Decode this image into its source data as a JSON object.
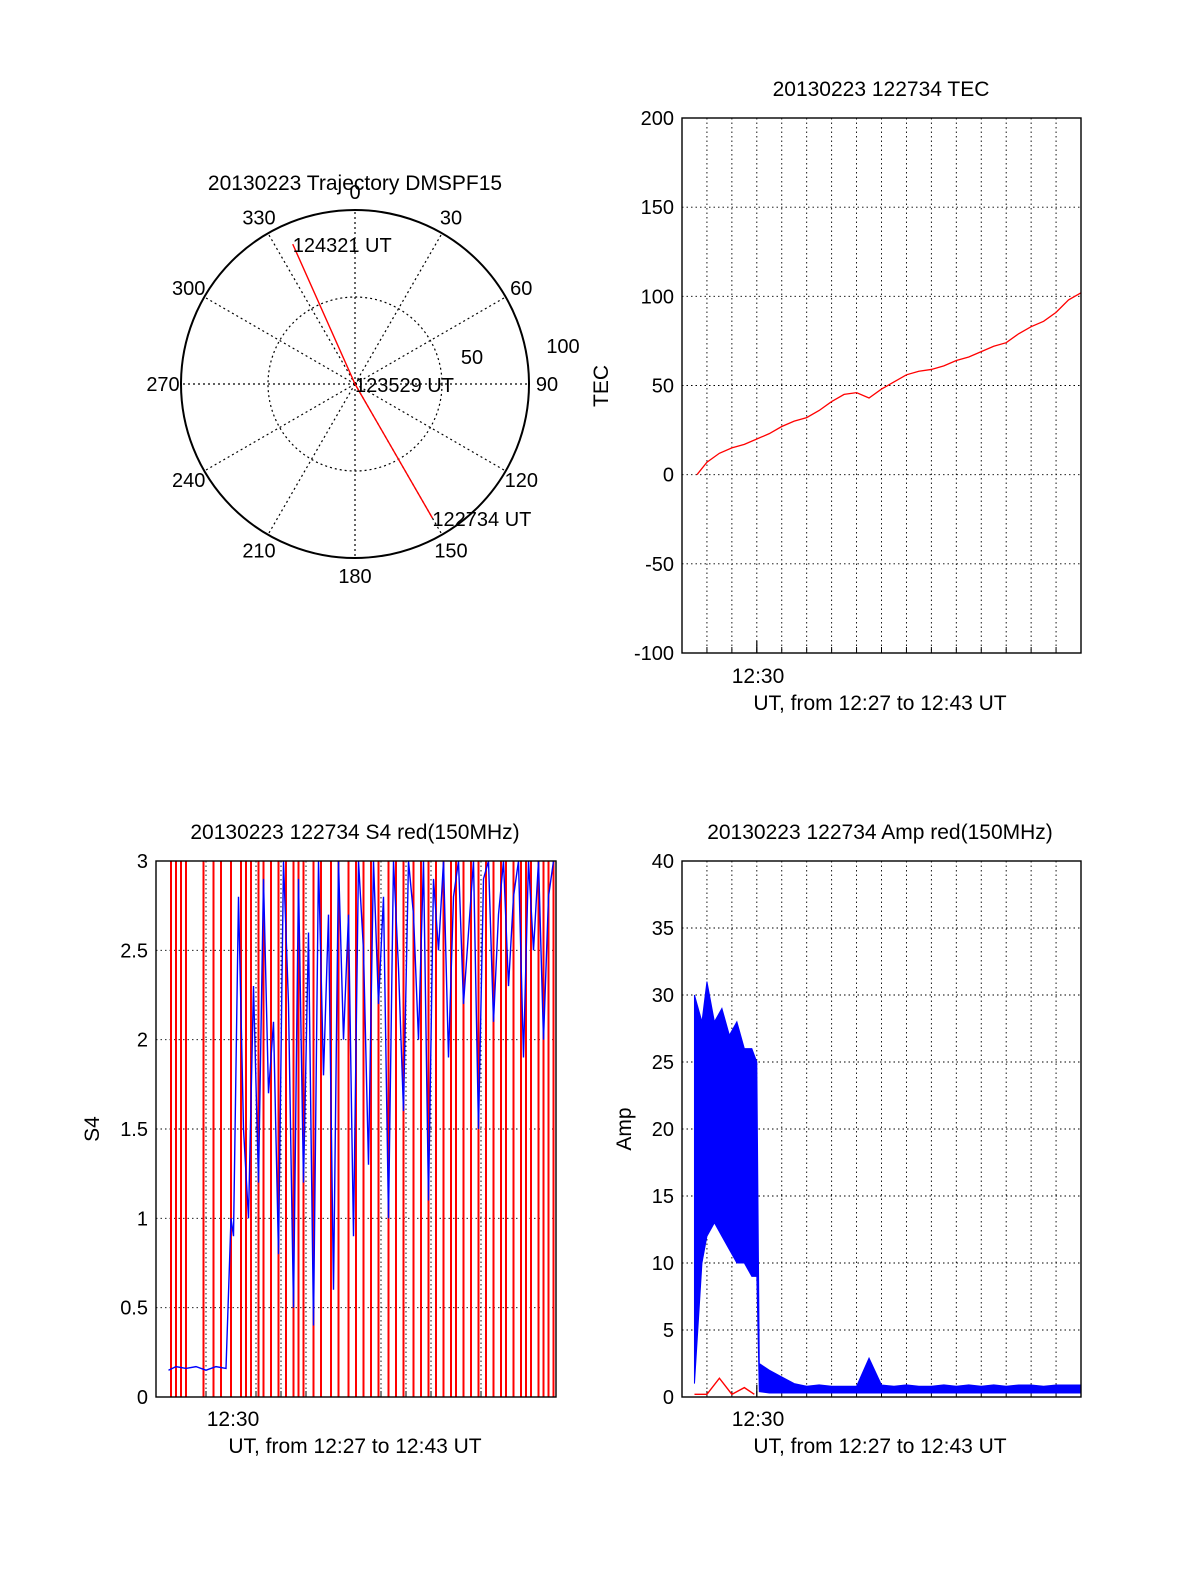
{
  "colors": {
    "red": "#ff0000",
    "blue": "#0000ff",
    "axis": "#000000",
    "grid": "#000000"
  },
  "chart_data": [
    {
      "id": "trajectory",
      "type": "polar",
      "title": "20130223 Trajectory DMSPF15",
      "azimuth_labels": [
        "0",
        "30",
        "60",
        "90",
        "120",
        "150",
        "180",
        "210",
        "240",
        "270",
        "300",
        "330"
      ],
      "radial_labels": [
        "50",
        "100"
      ],
      "rmax": 100,
      "grid": true,
      "track": {
        "color": "red",
        "points": [
          {
            "az": 336,
            "r": 88,
            "label": "124321 UT"
          },
          {
            "az": 90,
            "r": 0,
            "label": "123529 UT"
          },
          {
            "az": 150,
            "r": 89,
            "label": "122734 UT"
          }
        ]
      }
    },
    {
      "id": "tec",
      "type": "line",
      "title": "20130223 122734 TEC",
      "ylabel": "TEC",
      "xlabel": "UT, from 12:27 to 12:43 UT",
      "x_tick_label": "12:30",
      "x_tick_minute": 30,
      "xlim": [
        27.0,
        43.0
      ],
      "ylim": [
        -100,
        200
      ],
      "yticks": [
        -100,
        -50,
        0,
        50,
        100,
        150,
        200
      ],
      "grid": true,
      "series": [
        {
          "color": "red",
          "x": [
            27.6,
            28.0,
            28.5,
            29.0,
            29.5,
            30.0,
            30.5,
            31.0,
            31.5,
            32.0,
            32.5,
            33.0,
            33.5,
            34.0,
            34.5,
            35.0,
            35.5,
            36.0,
            36.5,
            37.0,
            37.5,
            38.0,
            38.5,
            39.0,
            39.5,
            40.0,
            40.5,
            41.0,
            41.5,
            42.0,
            42.5,
            43.0
          ],
          "y": [
            0,
            7,
            12,
            15,
            17,
            20,
            23,
            27,
            30,
            32,
            36,
            41,
            45,
            46,
            43,
            48,
            52,
            56,
            58,
            59,
            61,
            64,
            66,
            69,
            72,
            74,
            79,
            83,
            86,
            91,
            98,
            102
          ]
        }
      ]
    },
    {
      "id": "s4",
      "type": "line",
      "title": "20130223 122734 S4 red(150MHz)",
      "ylabel": "S4",
      "xlabel": "UT, from 12:27 to 12:43 UT",
      "x_tick_label": "12:30",
      "x_tick_minute": 30,
      "xlim": [
        27.0,
        43.0
      ],
      "ylim": [
        0,
        3
      ],
      "yticks": [
        0,
        0.5,
        1,
        1.5,
        2,
        2.5,
        3
      ],
      "grid": true,
      "series": [
        {
          "color": "blue",
          "x": [
            27.5,
            27.8,
            28.2,
            28.6,
            29.0,
            29.4,
            29.8,
            30.0,
            30.1,
            30.3,
            30.5,
            30.7,
            30.9,
            31.1,
            31.3,
            31.5,
            31.7,
            31.9,
            32.1,
            32.3,
            32.5,
            32.7,
            32.9,
            33.1,
            33.3,
            33.5,
            33.7,
            33.9,
            34.1,
            34.3,
            34.5,
            34.7,
            34.9,
            35.1,
            35.3,
            35.5,
            35.7,
            35.9,
            36.1,
            36.3,
            36.5,
            36.7,
            36.9,
            37.1,
            37.3,
            37.5,
            37.7,
            37.9,
            38.1,
            38.3,
            38.5,
            38.7,
            38.9,
            39.1,
            39.3,
            39.5,
            39.7,
            39.9,
            40.1,
            40.3,
            40.5,
            40.7,
            40.9,
            41.1,
            41.3,
            41.5,
            41.7,
            41.9,
            42.1,
            42.3,
            42.5,
            42.7,
            42.9
          ],
          "y": [
            0.15,
            0.17,
            0.16,
            0.17,
            0.15,
            0.17,
            0.16,
            1.0,
            0.9,
            2.8,
            1.5,
            1.0,
            2.3,
            1.2,
            2.9,
            1.7,
            2.1,
            0.8,
            3.0,
            2.2,
            0.5,
            2.9,
            1.2,
            2.6,
            0.4,
            3.0,
            1.8,
            2.7,
            0.6,
            3.0,
            2.0,
            2.7,
            0.9,
            3.0,
            2.5,
            1.3,
            3.0,
            2.2,
            2.8,
            1.0,
            3.0,
            2.4,
            1.6,
            3.0,
            2.7,
            2.0,
            3.0,
            1.1,
            2.9,
            2.5,
            3.0,
            1.9,
            2.8,
            3.0,
            2.2,
            2.6,
            3.0,
            1.5,
            2.9,
            3.0,
            2.1,
            2.7,
            3.0,
            2.3,
            2.8,
            3.0,
            1.9,
            3.0,
            2.5,
            3.0,
            2.0,
            2.8,
            3.0
          ]
        },
        {
          "color": "red",
          "note_style": "spikes",
          "x": [
            27.6,
            27.8,
            28.0,
            28.2,
            28.9,
            29.3,
            29.6,
            30.0,
            30.4,
            30.6,
            30.8,
            31.1,
            31.3,
            31.6,
            31.9,
            32.2,
            32.5,
            32.7,
            32.9,
            33.3,
            33.6,
            34.0,
            34.3,
            34.7,
            35.0,
            35.3,
            35.6,
            35.9,
            36.3,
            36.6,
            36.9,
            37.3,
            37.6,
            37.9,
            38.2,
            38.5,
            38.8,
            39.0,
            39.3,
            39.6,
            39.9,
            40.2,
            40.5,
            40.8,
            41.0,
            41.3,
            41.6,
            41.8,
            42.0,
            42.3,
            42.5,
            42.7,
            42.9
          ],
          "y": [
            3,
            3,
            3,
            3,
            3,
            3,
            3,
            3,
            3,
            3,
            3,
            3,
            3,
            3,
            3,
            3,
            3,
            3,
            3,
            3,
            3,
            3,
            3,
            3,
            3,
            3,
            3,
            3,
            3,
            3,
            3,
            3,
            3,
            3,
            3,
            3,
            3,
            3,
            3,
            3,
            3,
            3,
            3,
            3,
            3,
            3,
            3,
            3,
            3,
            3,
            3,
            3,
            3
          ]
        }
      ]
    },
    {
      "id": "amp",
      "type": "line",
      "title": "20130223 122734 Amp red(150MHz)",
      "ylabel": "Amp",
      "xlabel": "UT, from 12:27 to 12:43 UT",
      "x_tick_label": "12:30",
      "x_tick_minute": 30,
      "xlim": [
        27.0,
        43.0
      ],
      "ylim": [
        0,
        40
      ],
      "yticks": [
        0,
        5,
        10,
        15,
        20,
        25,
        30,
        35,
        40
      ],
      "grid": true,
      "series": [
        {
          "color": "blue",
          "x": [
            27.5,
            27.8,
            28.0,
            28.3,
            28.6,
            28.9,
            29.2,
            29.5,
            29.8,
            30.0,
            30.1,
            30.5,
            31.0,
            31.5,
            32.0,
            32.5,
            33.0,
            33.5,
            34.0,
            34.5,
            35.0,
            35.5,
            36.0,
            36.5,
            37.0,
            37.5,
            38.0,
            38.5,
            39.0,
            39.5,
            40.0,
            40.5,
            41.0,
            41.5,
            42.0,
            42.5,
            43.0
          ],
          "y_low": [
            1,
            10,
            12,
            13,
            12,
            11,
            10,
            10,
            9,
            9,
            0.4,
            0.3,
            0.3,
            0.3,
            0.3,
            0.3,
            0.3,
            0.3,
            0.3,
            0.3,
            0.3,
            0.3,
            0.3,
            0.3,
            0.3,
            0.3,
            0.3,
            0.3,
            0.3,
            0.3,
            0.3,
            0.3,
            0.3,
            0.3,
            0.3,
            0.3,
            0.3
          ],
          "y_high": [
            30,
            28,
            31,
            28,
            29,
            27,
            28,
            26,
            26,
            25,
            2.5,
            2.0,
            1.5,
            1.0,
            0.8,
            0.9,
            0.8,
            0.8,
            0.8,
            2.9,
            0.9,
            0.8,
            0.9,
            0.8,
            0.8,
            0.9,
            0.8,
            0.9,
            0.8,
            0.9,
            0.8,
            0.9,
            0.9,
            0.8,
            0.9,
            0.9,
            0.9
          ]
        },
        {
          "color": "red",
          "x": [
            27.5,
            28.0,
            28.5,
            29.0,
            29.5,
            29.9
          ],
          "y": [
            0.2,
            0.2,
            1.4,
            0.2,
            0.7,
            0.2
          ]
        }
      ]
    }
  ]
}
